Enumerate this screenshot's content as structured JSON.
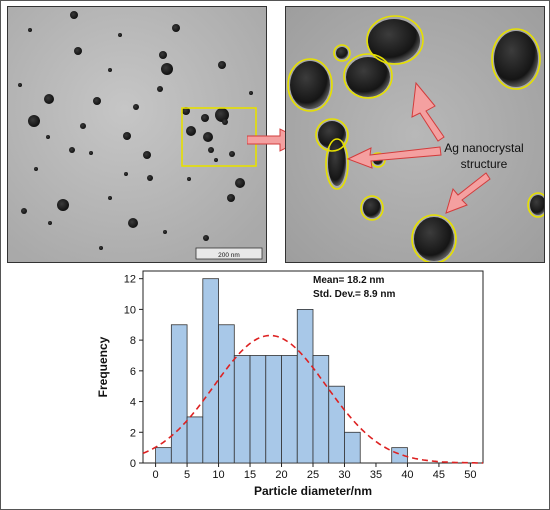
{
  "micrographs": {
    "scale_bar_label": "200 nm",
    "annotation_line1": "Ag nanocrystal",
    "annotation_line2": "structure",
    "highlight_color": "#e6e000",
    "arrow_color": "#f08080"
  },
  "chart_data": {
    "type": "bar",
    "subtype": "histogram with normal fit",
    "xlabel": "Particle diameter/nm",
    "ylabel": "Frequency",
    "xlim": [
      -2,
      52
    ],
    "ylim": [
      0,
      12.5
    ],
    "xticks": [
      "0",
      "5",
      "10",
      "15",
      "20",
      "25",
      "30",
      "35",
      "40",
      "45",
      "50"
    ],
    "yticks": [
      "0",
      "2",
      "4",
      "6",
      "8",
      "10",
      "12"
    ],
    "bins": [
      {
        "start": 0,
        "end": 2.5,
        "value": 1
      },
      {
        "start": 2.5,
        "end": 5,
        "value": 9
      },
      {
        "start": 5,
        "end": 7.5,
        "value": 3
      },
      {
        "start": 7.5,
        "end": 10,
        "value": 12
      },
      {
        "start": 10,
        "end": 12.5,
        "value": 9
      },
      {
        "start": 12.5,
        "end": 15,
        "value": 7
      },
      {
        "start": 15,
        "end": 17.5,
        "value": 7
      },
      {
        "start": 17.5,
        "end": 20,
        "value": 7
      },
      {
        "start": 20,
        "end": 22.5,
        "value": 7
      },
      {
        "start": 22.5,
        "end": 25,
        "value": 10
      },
      {
        "start": 25,
        "end": 27.5,
        "value": 7
      },
      {
        "start": 27.5,
        "end": 30,
        "value": 5
      },
      {
        "start": 30,
        "end": 32.5,
        "value": 2
      },
      {
        "start": 32.5,
        "end": 35,
        "value": 0
      },
      {
        "start": 35,
        "end": 37.5,
        "value": 0
      },
      {
        "start": 37.5,
        "end": 40,
        "value": 1
      },
      {
        "start": 40,
        "end": 42.5,
        "value": 0
      },
      {
        "start": 42.5,
        "end": 45,
        "value": 0
      }
    ],
    "fit": {
      "type": "normal",
      "mean": 18.2,
      "std": 8.9,
      "peak": 8.3,
      "color": "#dd2222",
      "style": "dashed"
    },
    "bar_color": "#a8c8e8",
    "bar_edge_color": "#333333",
    "annotations": [
      "Mean= 18.2 nm",
      "Std. Dev.= 8.9 nm"
    ],
    "legend": "none",
    "grid": false
  }
}
